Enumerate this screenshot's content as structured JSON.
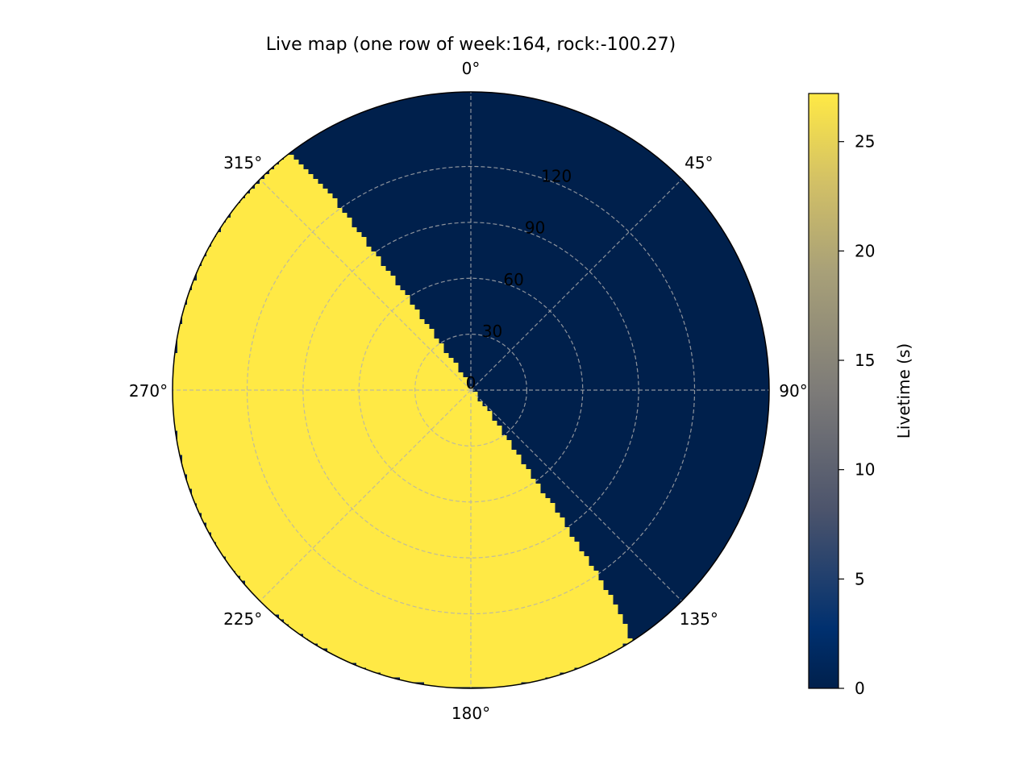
{
  "chart_data": {
    "type": "heatmap",
    "projection": "polar",
    "title": "Live map (one row of week:164, rock:-100.27)",
    "theta_zero": "top",
    "theta_direction": "clockwise",
    "theta_ticks": [
      0,
      45,
      90,
      135,
      180,
      225,
      270,
      315
    ],
    "theta_tick_labels": [
      "0°",
      "45°",
      "90°",
      "135°",
      "180°",
      "225°",
      "270°",
      "315°"
    ],
    "radial_ticks": [
      0,
      30,
      60,
      90,
      120
    ],
    "radial_tick_labels": [
      "0",
      "30",
      "60",
      "90",
      "120"
    ],
    "rlim": [
      0,
      160
    ],
    "grid": true,
    "colormap": "cividis",
    "colorbar": {
      "label": "Livetime (s)",
      "range": [
        0,
        27.2
      ],
      "ticks": [
        0,
        5,
        10,
        15,
        20,
        25
      ],
      "tick_labels": [
        "0",
        "5",
        "10",
        "15",
        "20",
        "25"
      ],
      "position": "right"
    },
    "background_value": 0,
    "regions": [
      {
        "description_value": "livetime",
        "value": 27.2,
        "center_azimuth_deg": 235,
        "center_zenith_deg": 89,
        "angular_radius_deg": 90
      }
    ]
  }
}
